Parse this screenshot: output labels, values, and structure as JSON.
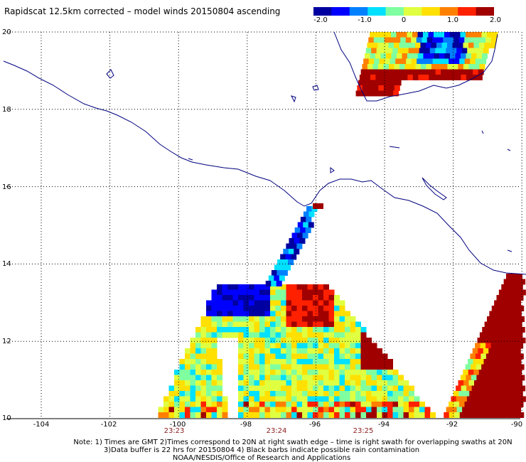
{
  "title": "Rapidscat 12.5km corrected – model winds 20150804 ascending",
  "colorbar": {
    "labels": [
      "-2.0",
      "-1.0",
      "0",
      "1.0",
      "2.0"
    ],
    "min": -2.0,
    "max": 2.0,
    "colors": [
      "#0000a0",
      "#0000ff",
      "#0080ff",
      "#00e0ff",
      "#80ffa0",
      "#e0ff40",
      "#ffe000",
      "#ff8000",
      "#ff2000",
      "#a00000"
    ]
  },
  "map": {
    "lat_range": [
      10,
      20
    ],
    "lon_range": [
      -105,
      -90
    ],
    "lat_labels": [
      "20",
      "18",
      "16",
      "14",
      "12",
      "10"
    ],
    "lon_labels": [
      "-104",
      "-102",
      "-100",
      "-98",
      "-96",
      "-94",
      "-92",
      "-90"
    ],
    "lat_ticks": [
      20,
      18,
      16,
      14,
      12,
      10
    ],
    "lon_ticks": [
      -104,
      -102,
      -100,
      -98,
      -96,
      -94,
      -92,
      -90
    ],
    "coast_color": "#000080",
    "grid_style": "dotted"
  },
  "times": [
    {
      "label": "23:23",
      "lon": -100.7
    },
    {
      "label": "23:24",
      "lon": -97.2
    },
    {
      "label": "23:25",
      "lon": -95.0
    }
  ],
  "notes": [
    "Note: 1) Times are GMT 2)Times correspond to 20N at right swath edge – time is right swath for overlapping swaths at 20N",
    "3)Data buffer is 22 hrs for 20150804 4) Black barbs indicate possible rain contamination",
    "NOAA/NESDIS/Office of Research and Applications"
  ]
}
